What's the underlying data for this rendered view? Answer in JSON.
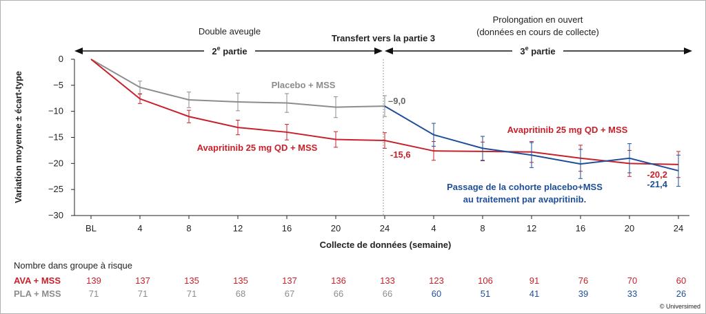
{
  "chart_data": {
    "type": "line",
    "ylabel": "Variation moyenne ± écart-type",
    "xlabel": "Collecte de données (semaine)",
    "ylim": [
      -30,
      0
    ],
    "y_ticks": [
      0,
      -5,
      -10,
      -15,
      -20,
      -25,
      -30
    ],
    "y_tick_labels": [
      "0",
      "−5",
      "−10",
      "−15",
      "−20",
      "−25",
      "−30"
    ],
    "x_tick_labels": [
      "BL",
      "4",
      "8",
      "12",
      "16",
      "20",
      "24",
      "4",
      "8",
      "12",
      "16",
      "20",
      "24"
    ],
    "grid": false,
    "series": [
      {
        "name": "Avapritinib 25 mg QD + MSS",
        "color": "#c8202a",
        "x_index": [
          0,
          1,
          2,
          3,
          4,
          5,
          6,
          7,
          8,
          9,
          10,
          11,
          12
        ],
        "values": [
          0,
          -7.6,
          -11.0,
          -13.1,
          -14.0,
          -15.4,
          -15.6,
          -17.6,
          -17.7,
          -17.8,
          -19.0,
          -20.0,
          -20.2
        ],
        "error": [
          0,
          0.9,
          1.2,
          1.4,
          1.5,
          1.5,
          1.5,
          1.8,
          1.8,
          2.0,
          2.5,
          2.5,
          2.5
        ],
        "label_main": "Avapritinib 25 mg QD + MSS",
        "label_ext": "Avapritinib 25 mg QD + MSS"
      },
      {
        "name": "Placebo + MSS",
        "color": "#8c8c8c",
        "x_index": [
          0,
          1,
          2,
          3,
          4,
          5,
          6
        ],
        "values": [
          0,
          -5.4,
          -7.8,
          -8.2,
          -8.4,
          -9.2,
          -9.0
        ],
        "error": [
          0,
          1.2,
          1.5,
          1.7,
          1.8,
          2.0,
          2.0
        ],
        "label_main": "Placebo + MSS"
      },
      {
        "name": "Passage de la cohorte placebo+MSS au traitement par avapritinib.",
        "color": "#1f4e99",
        "x_index": [
          6,
          7,
          8,
          9,
          10,
          11,
          12
        ],
        "values": [
          -9.0,
          -14.5,
          -17.1,
          -18.4,
          -20.1,
          -19.0,
          -21.4
        ],
        "error": [
          0,
          2.2,
          2.3,
          2.4,
          2.8,
          2.8,
          3.0
        ],
        "label_line1": "Passage de la cohorte placebo+MSS",
        "label_line2": "au traitement par avapritinib."
      }
    ],
    "annotations": {
      "placebo_end": "–9,0",
      "ava_end_part2": "-15,6",
      "ava_end_part3": "-20,2",
      "blue_end": "-21,4"
    },
    "phases": {
      "part2_top": "Double aveugle",
      "part2_label": "2",
      "part2_sup": "e",
      "part2_rest": " partie",
      "transfer": "Transfert vers la partie 3",
      "part3_top_line1": "Prolongation en ouvert",
      "part3_top_line2": "(données en cours de collecte)",
      "part3_label": "3",
      "part3_sup": "e",
      "part3_rest": " partie"
    },
    "risk_table": {
      "title": "Nombre dans groupe à risque",
      "rows": [
        {
          "label": "AVA + MSS",
          "color": "#c8202a",
          "values": [
            "139",
            "137",
            "135",
            "135",
            "137",
            "136",
            "133",
            "123",
            "106",
            "91",
            "76",
            "70",
            "60"
          ],
          "value_colors": [
            "#c8202a",
            "#c8202a",
            "#c8202a",
            "#c8202a",
            "#c8202a",
            "#c8202a",
            "#c8202a",
            "#c8202a",
            "#c8202a",
            "#c8202a",
            "#c8202a",
            "#c8202a",
            "#c8202a"
          ]
        },
        {
          "label": "PLA + MSS",
          "color": "#8c8c8c",
          "values": [
            "71",
            "71",
            "71",
            "68",
            "67",
            "66",
            "66",
            "60",
            "51",
            "41",
            "39",
            "33",
            "26"
          ],
          "value_colors": [
            "#8c8c8c",
            "#8c8c8c",
            "#8c8c8c",
            "#8c8c8c",
            "#8c8c8c",
            "#8c8c8c",
            "#8c8c8c",
            "#1f4e99",
            "#1f4e99",
            "#1f4e99",
            "#1f4e99",
            "#1f4e99",
            "#1f4e99"
          ]
        }
      ]
    }
  },
  "copyright": "© Universimed"
}
